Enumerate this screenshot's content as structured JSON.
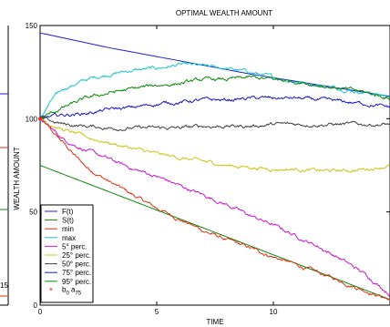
{
  "chart_data": {
    "type": "line",
    "title": "OPTIMAL WEALTH AMOUNT",
    "xlabel": "TIME",
    "ylabel": "WEALTH AMOUNT",
    "xlim": [
      0,
      15
    ],
    "ylim": [
      0,
      150
    ],
    "x_ticks": [
      "0",
      "5",
      "10"
    ],
    "y_ticks": [
      "0",
      "50",
      "100",
      "150"
    ],
    "left_panel": {
      "x_ticks": [
        "15"
      ],
      "y_ticks": [
        "100",
        "50"
      ]
    },
    "legend_position": "bottom-left",
    "series": [
      {
        "name": "F(t)",
        "color": "#1f1fd6",
        "style": "smooth",
        "x": [
          0,
          3,
          6,
          9,
          12,
          15
        ],
        "y": [
          146,
          138,
          131,
          124,
          118,
          112
        ]
      },
      {
        "name": "S(t)",
        "color": "#0b8a0b",
        "style": "smooth",
        "x": [
          0,
          15
        ],
        "y": [
          75,
          3
        ]
      },
      {
        "name": "min",
        "color": "#e03010",
        "style": "noisy",
        "x": [
          0,
          0.5,
          1,
          1.5,
          2,
          3,
          4,
          5,
          6,
          7,
          8,
          10,
          12,
          15
        ],
        "y": [
          100,
          93,
          87,
          80,
          74,
          66,
          59,
          52,
          46,
          40,
          35,
          26,
          17,
          3
        ]
      },
      {
        "name": "max",
        "color": "#18c8c8",
        "style": "noisy",
        "x": [
          0,
          0.5,
          1,
          2,
          3,
          4,
          5,
          6,
          7,
          8,
          9,
          10,
          11,
          12,
          13,
          14,
          15
        ],
        "y": [
          100,
          110,
          116,
          121,
          124,
          126,
          127,
          129,
          128,
          127,
          125,
          122,
          120,
          118,
          116,
          114,
          112
        ]
      },
      {
        "name": "5° perc.",
        "color": "#c818c8",
        "style": "noisy",
        "x": [
          0,
          1,
          2,
          3,
          4,
          5,
          6,
          7,
          8,
          9,
          10,
          11,
          12,
          13,
          14,
          15
        ],
        "y": [
          100,
          89,
          83,
          78,
          73,
          69,
          64,
          59,
          54,
          48,
          43,
          37,
          31,
          24,
          16,
          6
        ]
      },
      {
        "name": "25° perc.",
        "color": "#c8c818",
        "style": "noisy",
        "x": [
          0,
          1,
          2,
          3,
          4,
          5,
          6,
          7,
          8,
          9,
          10,
          11,
          12,
          13,
          14,
          15
        ],
        "y": [
          100,
          94,
          90,
          87,
          84,
          81,
          79,
          77,
          75,
          74,
          73,
          73,
          72,
          72,
          73,
          75
        ]
      },
      {
        "name": "50° perc.",
        "color": "#404040",
        "style": "noisy",
        "x": [
          0,
          1,
          2,
          3,
          4,
          5,
          6,
          7,
          8,
          9,
          10,
          11,
          12,
          13,
          14,
          15
        ],
        "y": [
          100,
          97,
          96,
          95,
          95,
          95,
          95,
          96,
          96,
          96,
          97,
          97,
          97,
          97,
          97,
          97
        ]
      },
      {
        "name": "75° perc.",
        "color": "#1818c8",
        "style": "noisy",
        "x": [
          0,
          1,
          2,
          3,
          4,
          5,
          6,
          7,
          8,
          9,
          10,
          11,
          12,
          13,
          14,
          15
        ],
        "y": [
          100,
          102,
          103,
          105,
          106,
          108,
          109,
          110,
          110,
          111,
          111,
          111,
          110,
          109,
          108,
          106
        ]
      },
      {
        "name": "95° perc.",
        "color": "#0b8a0b",
        "style": "noisy",
        "x": [
          0,
          1,
          2,
          3,
          4,
          5,
          6,
          7,
          8,
          9,
          10,
          11,
          12,
          13,
          14,
          15
        ],
        "y": [
          100,
          106,
          111,
          114,
          116,
          118,
          119,
          121,
          121,
          122,
          121,
          120,
          118,
          116,
          114,
          111
        ]
      }
    ],
    "points": [
      {
        "name": "b0 a75",
        "color": "#ff2020",
        "x": 0,
        "y": 100
      }
    ]
  }
}
